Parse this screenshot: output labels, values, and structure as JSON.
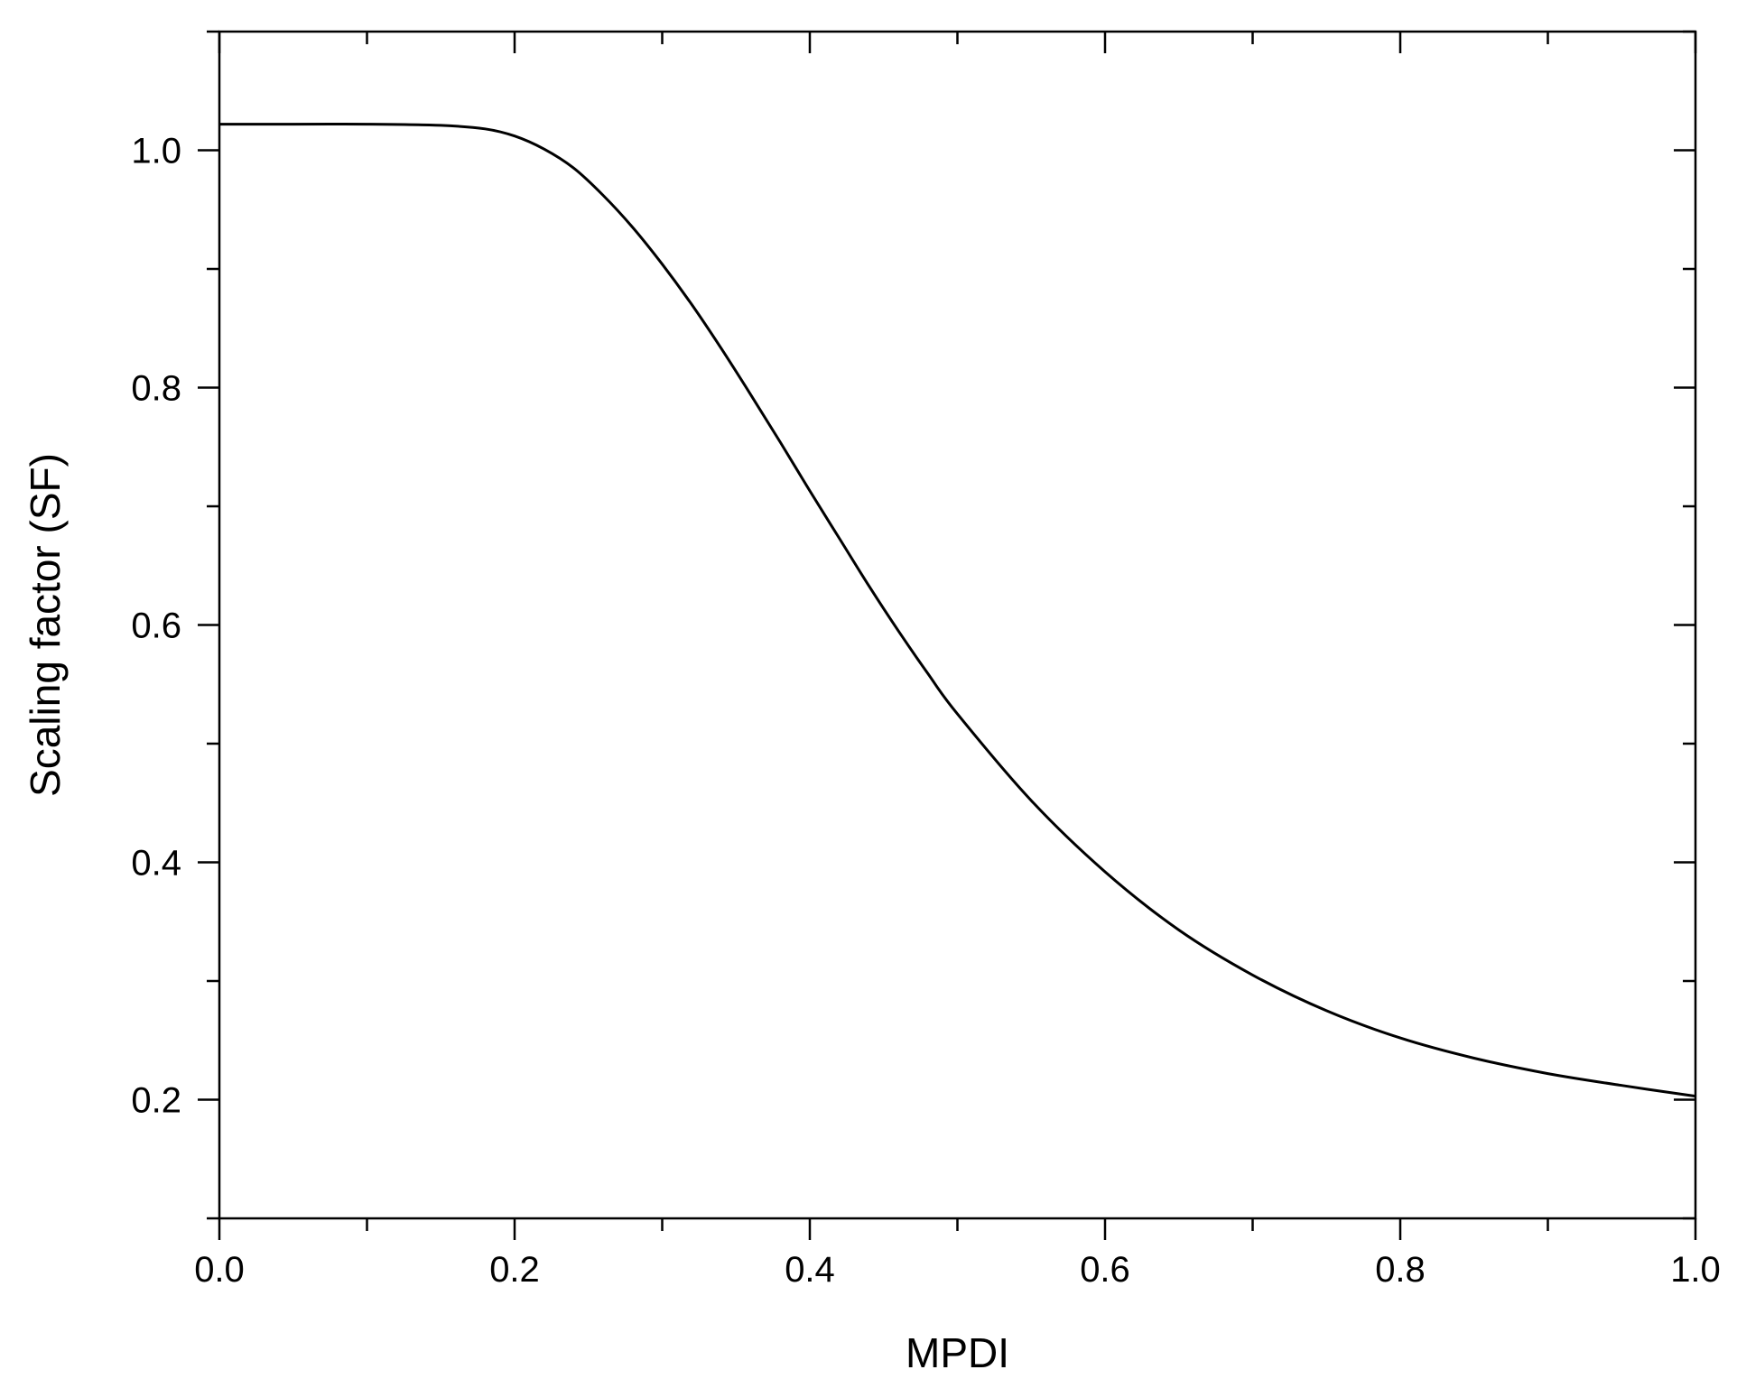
{
  "chart_data": {
    "type": "line",
    "title": "",
    "xlabel": "MPDI",
    "ylabel": "Scaling factor (SF)",
    "xlim": [
      0.0,
      1.0
    ],
    "ylim": [
      0.1,
      1.1
    ],
    "x_ticks": [
      "0.0",
      "0.2",
      "0.4",
      "0.6",
      "0.8",
      "1.0"
    ],
    "y_ticks": [
      "0.2",
      "0.4",
      "0.6",
      "0.8",
      "1.0"
    ],
    "grid": false,
    "legend": "none",
    "line_color": "#000000",
    "series": [
      {
        "x": [
          0.0,
          0.05,
          0.1,
          0.15,
          0.18,
          0.2,
          0.22,
          0.24,
          0.26,
          0.28,
          0.3,
          0.32,
          0.34,
          0.36,
          0.38,
          0.4,
          0.42,
          0.44,
          0.46,
          0.48,
          0.5,
          0.55,
          0.6,
          0.65,
          0.7,
          0.75,
          0.8,
          0.85,
          0.9,
          0.95,
          1.0
        ],
        "y": [
          1.022,
          1.022,
          1.022,
          1.021,
          1.018,
          1.012,
          1.001,
          0.985,
          0.962,
          0.935,
          0.904,
          0.87,
          0.833,
          0.794,
          0.754,
          0.713,
          0.673,
          0.633,
          0.595,
          0.559,
          0.525,
          0.452,
          0.392,
          0.343,
          0.305,
          0.275,
          0.252,
          0.235,
          0.222,
          0.212,
          0.203
        ]
      }
    ]
  }
}
